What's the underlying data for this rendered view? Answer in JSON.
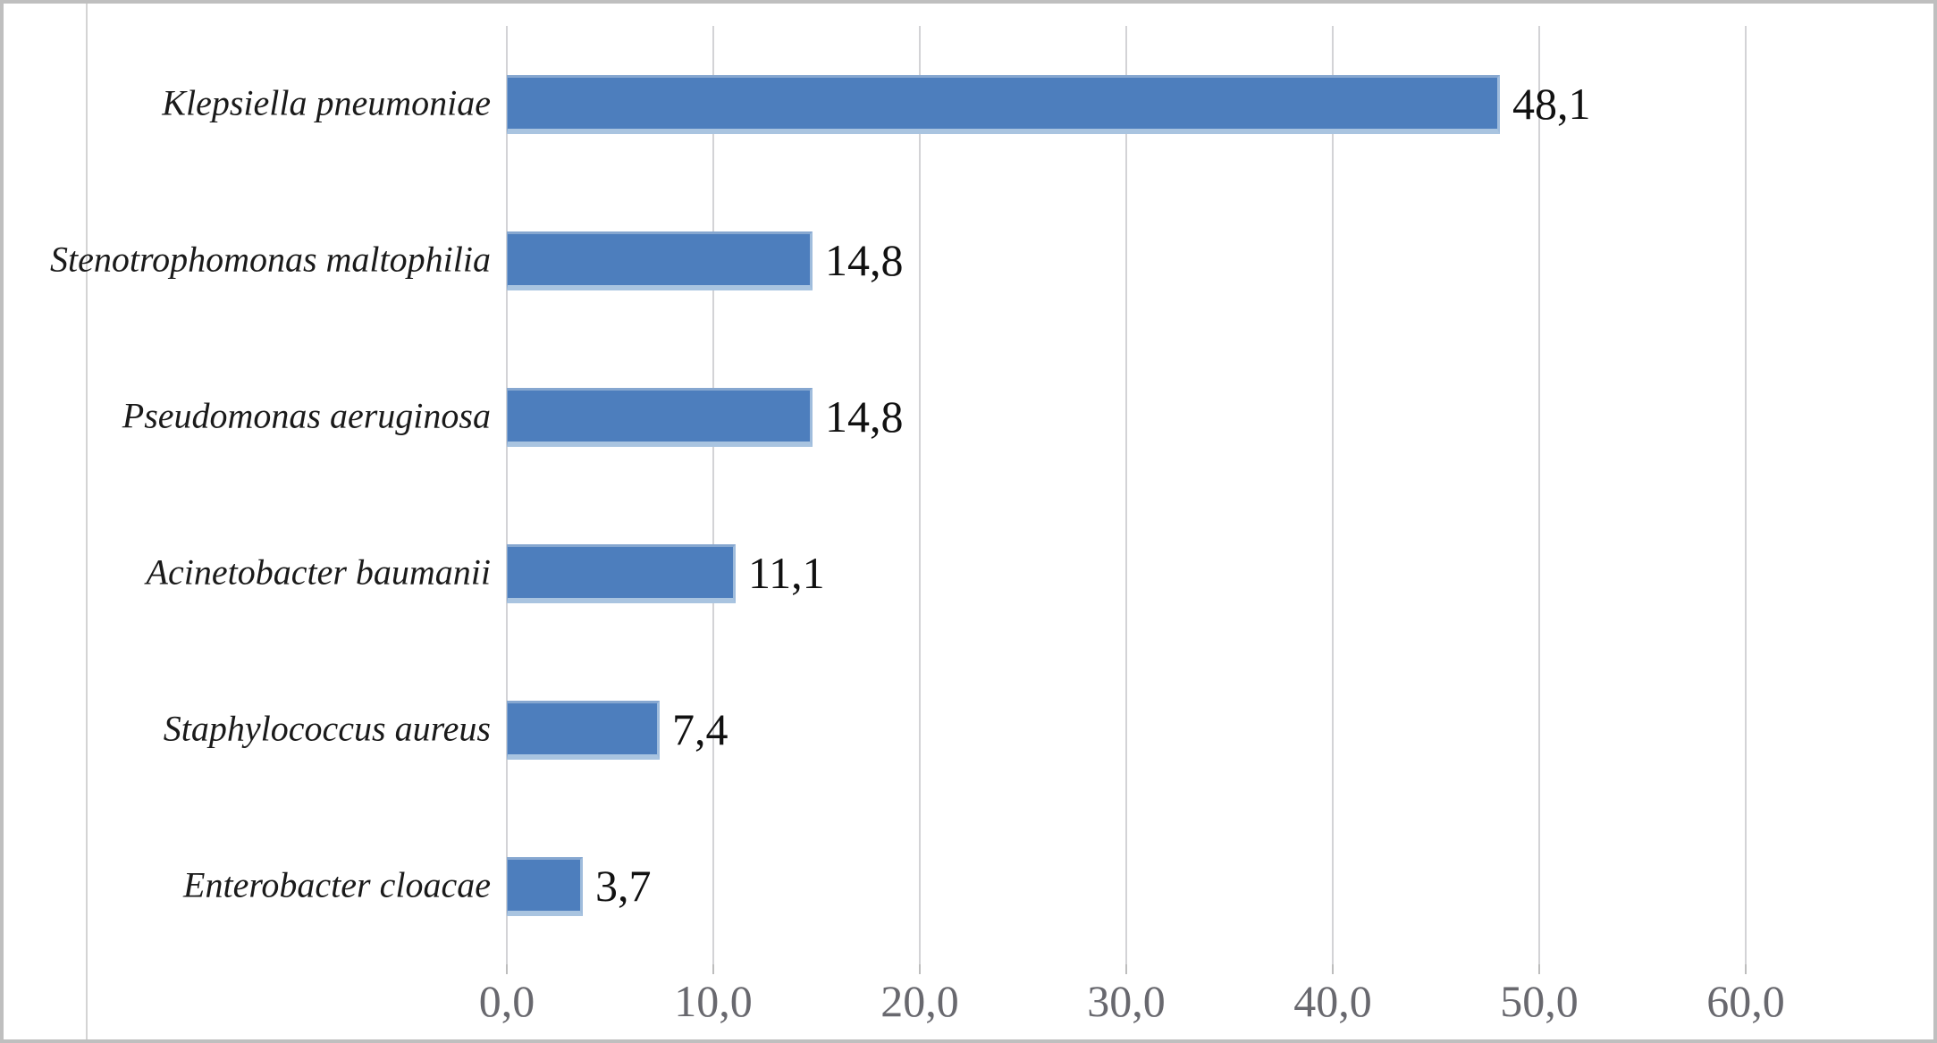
{
  "chart_data": {
    "type": "bar",
    "orientation": "horizontal",
    "title": "",
    "xlabel": "",
    "ylabel": "",
    "categories": [
      "Klepsiella pneumoniae",
      "Stenotrophomonas maltophilia",
      "Pseudomonas aeruginosa",
      "Acinetobacter baumanii",
      "Staphylococcus aureus",
      "Enterobacter cloacae"
    ],
    "values": [
      48.1,
      14.8,
      14.8,
      11.1,
      7.4,
      3.7
    ],
    "data_labels": [
      "48,1",
      "14,8",
      "14,8",
      "11,1",
      "7,4",
      "3,7"
    ],
    "x_ticks": [
      0,
      10,
      20,
      30,
      40,
      50,
      60
    ],
    "x_tick_labels": [
      "0,0",
      "10,0",
      "20,0",
      "30,0",
      "40,0",
      "50,0",
      "60,0"
    ],
    "xlim": [
      0,
      65
    ],
    "grid": "vertical-major-gridlines",
    "legend": "none",
    "decimal_separator": ",",
    "colors": {
      "bar_fill": "#4d7ebd",
      "bar_edge_light": "#a9c4e0",
      "gridline": "#d3d3d6",
      "axis_tick_label": "#68686e",
      "category_label": "#1a1a1a",
      "value_label": "#111111",
      "outer_border": "#bfbfbf"
    }
  }
}
